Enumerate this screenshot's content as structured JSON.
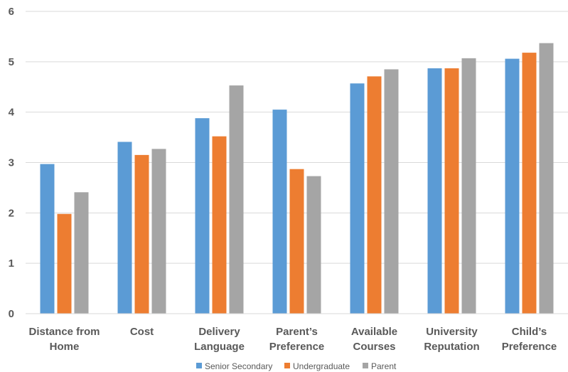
{
  "chart_data": {
    "type": "bar",
    "categories": [
      [
        "Distance from",
        "Home"
      ],
      [
        "Cost"
      ],
      [
        "Delivery",
        "Language"
      ],
      [
        "Parent’s",
        "Preference"
      ],
      [
        "Available",
        "Courses"
      ],
      [
        "University",
        "Reputation"
      ],
      [
        "Child’s",
        "Preference"
      ]
    ],
    "series": [
      {
        "name": "Senior Secondary",
        "color": "#5B9BD5",
        "values": [
          2.97,
          3.41,
          3.88,
          4.05,
          4.57,
          4.87,
          5.06
        ]
      },
      {
        "name": "Undergraduate",
        "color": "#ED7D31",
        "values": [
          1.98,
          3.15,
          3.52,
          2.87,
          4.71,
          4.87,
          5.18
        ]
      },
      {
        "name": "Parent",
        "color": "#A5A5A5",
        "values": [
          2.41,
          3.27,
          4.53,
          2.73,
          4.85,
          5.07,
          5.37
        ]
      }
    ],
    "ylim": [
      0,
      6
    ],
    "yticks": [
      "0",
      "1",
      "2",
      "3",
      "4",
      "5",
      "6"
    ],
    "grid": true,
    "legend_position": "bottom"
  }
}
